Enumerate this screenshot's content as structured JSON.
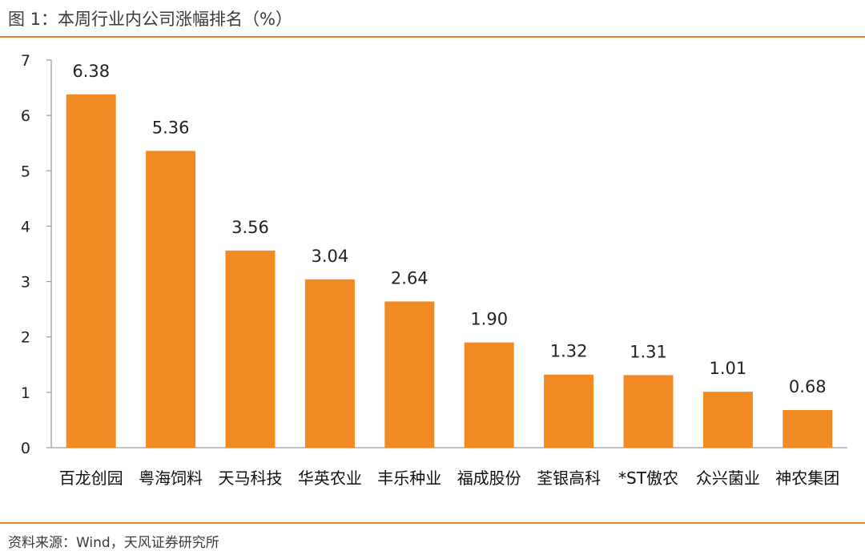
{
  "title": "图 1：本周行业内公司涨幅排名（%）",
  "source": "资料来源：Wind，天风证券研究所",
  "colors": {
    "bar": "#f28a24",
    "accent_line": "#e8832a",
    "axis": "#9a9a9a"
  },
  "chart_data": {
    "type": "bar",
    "categories": [
      "百龙创园",
      "粤海饲料",
      "天马科技",
      "华英农业",
      "丰乐种业",
      "福成股份",
      "荃银高科",
      "*ST傲农",
      "众兴菌业",
      "神农集团"
    ],
    "values": [
      6.38,
      5.36,
      3.56,
      3.04,
      2.64,
      1.9,
      1.32,
      1.31,
      1.01,
      0.68
    ],
    "value_labels": [
      "6.38",
      "5.36",
      "3.56",
      "3.04",
      "2.64",
      "1.90",
      "1.32",
      "1.31",
      "1.01",
      "0.68"
    ],
    "yticks": [
      "0",
      "1",
      "2",
      "3",
      "4",
      "5",
      "6",
      "7"
    ],
    "ylim": [
      0,
      7
    ],
    "grid": false,
    "legend": "none"
  }
}
